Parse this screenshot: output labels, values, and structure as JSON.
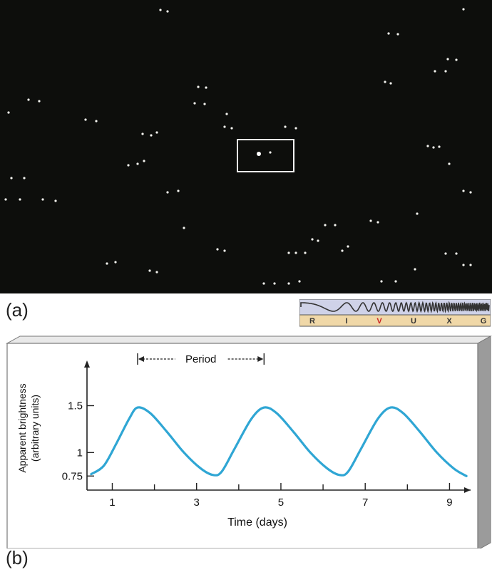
{
  "photo": {
    "stars": [
      [
        225,
        14
      ],
      [
        235,
        16
      ],
      [
        545,
        47
      ],
      [
        558,
        48
      ],
      [
        610,
        100
      ],
      [
        625,
        100
      ],
      [
        628,
        83
      ],
      [
        640,
        84
      ],
      [
        650,
        13
      ],
      [
        278,
        122
      ],
      [
        289,
        123
      ],
      [
        273,
        145
      ],
      [
        287,
        146
      ],
      [
        318,
        160
      ],
      [
        315,
        178
      ],
      [
        325,
        180
      ],
      [
        120,
        168
      ],
      [
        135,
        170
      ],
      [
        55,
        142
      ],
      [
        40,
        140
      ],
      [
        12,
        158
      ],
      [
        200,
        188
      ],
      [
        212,
        190
      ],
      [
        220,
        186
      ],
      [
        180,
        232
      ],
      [
        193,
        230
      ],
      [
        202,
        226
      ],
      [
        16,
        250
      ],
      [
        34,
        250
      ],
      [
        8,
        280
      ],
      [
        28,
        280
      ],
      [
        60,
        280
      ],
      [
        78,
        282
      ],
      [
        235,
        270
      ],
      [
        250,
        268
      ],
      [
        258,
        320
      ],
      [
        362,
        215
      ],
      [
        379,
        214
      ],
      [
        400,
        178
      ],
      [
        415,
        180
      ],
      [
        600,
        205
      ],
      [
        608,
        207
      ],
      [
        616,
        206
      ],
      [
        540,
        115
      ],
      [
        548,
        117
      ],
      [
        456,
        316
      ],
      [
        470,
        316
      ],
      [
        438,
        336
      ],
      [
        446,
        338
      ],
      [
        488,
        346
      ],
      [
        480,
        352
      ],
      [
        405,
        355
      ],
      [
        415,
        355
      ],
      [
        428,
        355
      ],
      [
        520,
        310
      ],
      [
        530,
        312
      ],
      [
        150,
        370
      ],
      [
        162,
        368
      ],
      [
        210,
        380
      ],
      [
        220,
        382
      ],
      [
        305,
        350
      ],
      [
        315,
        352
      ],
      [
        625,
        356
      ],
      [
        640,
        356
      ],
      [
        650,
        372
      ],
      [
        660,
        372
      ],
      [
        585,
        300
      ],
      [
        370,
        398
      ],
      [
        385,
        398
      ],
      [
        405,
        398
      ],
      [
        420,
        395
      ],
      [
        535,
        395
      ],
      [
        555,
        395
      ],
      [
        650,
        268
      ],
      [
        660,
        270
      ],
      [
        630,
        230
      ],
      [
        582,
        378
      ]
    ],
    "bright_star": [
      363,
      216
    ]
  },
  "labels": {
    "a": "(a)",
    "b": "(b)"
  },
  "spectrum": {
    "bands": [
      "R",
      "I",
      "V",
      "U",
      "X",
      "G"
    ],
    "highlight": "V",
    "highlight_color": "#cc2222",
    "band_color": "#f0d8a8"
  },
  "chart_data": {
    "type": "line",
    "xlabel": "Time (days)",
    "ylabel": "Apparent brightness",
    "ylabel2": "(arbitrary units)",
    "x_ticks": [
      1,
      3,
      5,
      7,
      9
    ],
    "y_ticks": [
      0.75,
      1,
      1.5
    ],
    "y_tick_labels": [
      "0.75",
      "1",
      "1.5"
    ],
    "xlim": [
      0.4,
      9.5
    ],
    "ylim": [
      0.6,
      1.8
    ],
    "annotation": "Period",
    "period_range": [
      1.6,
      4.6
    ],
    "series": [
      {
        "color": "#2fa6d4",
        "x": [
          0.5,
          0.8,
          1.1,
          1.4,
          1.6,
          1.9,
          2.3,
          2.7,
          3.1,
          3.4,
          3.6,
          3.9,
          4.3,
          4.6,
          4.9,
          5.3,
          5.7,
          6.1,
          6.4,
          6.6,
          6.9,
          7.3,
          7.6,
          7.9,
          8.3,
          8.7,
          9.1,
          9.4
        ],
        "y": [
          0.77,
          0.86,
          1.1,
          1.36,
          1.48,
          1.42,
          1.22,
          1.0,
          0.83,
          0.76,
          0.8,
          1.04,
          1.36,
          1.48,
          1.42,
          1.22,
          1.0,
          0.83,
          0.76,
          0.8,
          1.04,
          1.36,
          1.48,
          1.42,
          1.22,
          1.0,
          0.83,
          0.75
        ]
      }
    ]
  }
}
